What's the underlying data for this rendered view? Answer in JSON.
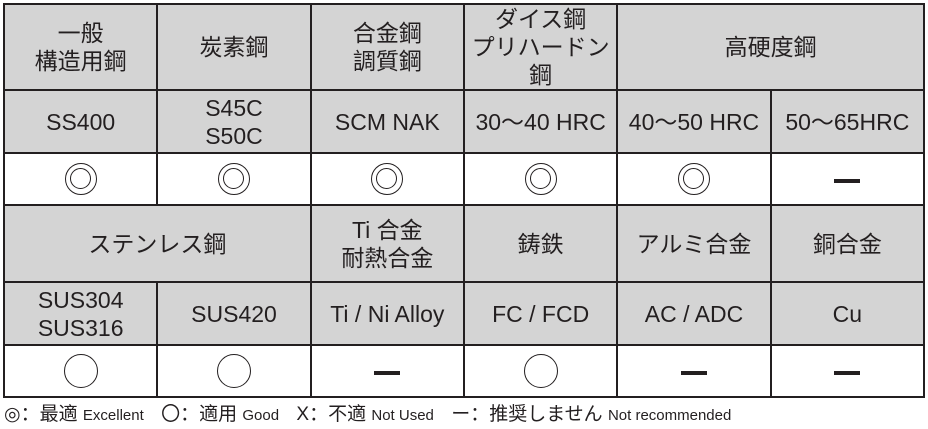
{
  "row1": {
    "headers": [
      "一般\n構造用鋼",
      "炭素鋼",
      "合金鋼\n調質鋼",
      "ダイス鋼\nプリハードン鋼",
      "高硬度鋼"
    ],
    "grades": [
      "SS400",
      "S45C\nS50C",
      "SCM NAK",
      "30～40 HRC",
      "40～50 HRC",
      "50～65HRC"
    ],
    "ratings": [
      "excellent",
      "excellent",
      "excellent",
      "excellent",
      "excellent",
      "not-recommended"
    ]
  },
  "row2": {
    "headers": [
      "ステンレス鋼",
      "Ti 合金\n耐熱合金",
      "鋳鉄",
      "アルミ合金",
      "銅合金"
    ],
    "grades": [
      "SUS304\nSUS316",
      "SUS420",
      "Ti / Ni Alloy",
      "FC / FCD",
      "AC / ADC",
      "Cu"
    ],
    "ratings": [
      "good",
      "good",
      "not-recommended",
      "good",
      "not-recommended",
      "not-recommended"
    ]
  },
  "legend": [
    {
      "symbol": "◎",
      "sep": "：",
      "ja": "最適",
      "en": "Excellent"
    },
    {
      "symbol": "〇",
      "sep": "：",
      "ja": "適用",
      "en": "Good"
    },
    {
      "symbol": "X",
      "sep": "：",
      "ja": "不適",
      "en": "Not Used"
    },
    {
      "symbol": "ー",
      "sep": "：",
      "ja": "推奨しません",
      "en": "Not recommended"
    }
  ],
  "colors": {
    "header_bg": "#d4d4d4",
    "border": "#231f20"
  }
}
